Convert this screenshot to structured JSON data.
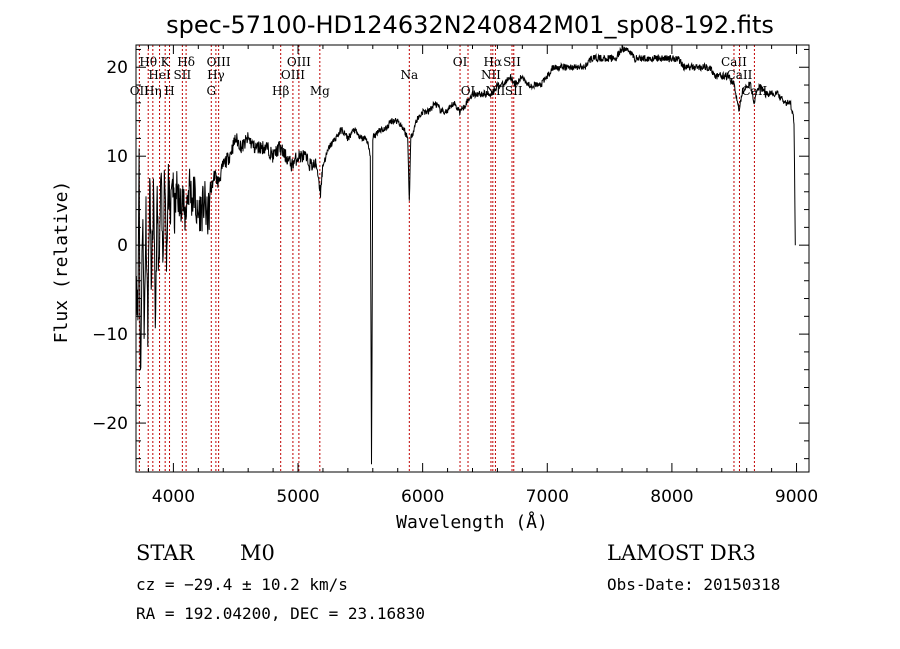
{
  "chart_data": {
    "type": "line",
    "title": "spec-57100-HD124632N240842M01_sp08-192.fits",
    "xlabel": "Wavelength (Å)",
    "ylabel": "Flux (relative)",
    "xlim": [
      3700,
      9100
    ],
    "ylim": [
      -25.5,
      22.5
    ],
    "xticks": [
      4000,
      5000,
      6000,
      7000,
      8000,
      9000
    ],
    "yticks": [
      -20,
      -10,
      0,
      10,
      20
    ],
    "tick_labels": {
      "x": [
        "4000",
        "5000",
        "6000",
        "7000",
        "8000",
        "9000"
      ],
      "y": [
        "−20",
        "−10",
        "0",
        "10",
        "20"
      ]
    },
    "spectrum_anchors": [
      [
        3700,
        -2
      ],
      [
        3715,
        -8
      ],
      [
        3725,
        11
      ],
      [
        3735,
        -15
      ],
      [
        3745,
        -6
      ],
      [
        3755,
        5
      ],
      [
        3765,
        -11
      ],
      [
        3780,
        4
      ],
      [
        3795,
        -9
      ],
      [
        3810,
        7
      ],
      [
        3825,
        -5
      ],
      [
        3840,
        6
      ],
      [
        3855,
        -9
      ],
      [
        3870,
        5
      ],
      [
        3885,
        -4
      ],
      [
        3900,
        8
      ],
      [
        3915,
        -2
      ],
      [
        3930,
        9
      ],
      [
        3945,
        -1
      ],
      [
        3960,
        7
      ],
      [
        3975,
        2
      ],
      [
        3990,
        8
      ],
      [
        4010,
        3
      ],
      [
        4030,
        7
      ],
      [
        4050,
        4
      ],
      [
        4070,
        6
      ],
      [
        4090,
        3
      ],
      [
        4110,
        5
      ],
      [
        4130,
        7
      ],
      [
        4150,
        5
      ],
      [
        4170,
        6
      ],
      [
        4190,
        3
      ],
      [
        4210,
        4
      ],
      [
        4230,
        4
      ],
      [
        4250,
        5
      ],
      [
        4270,
        3
      ],
      [
        4290,
        4
      ],
      [
        4300,
        6
      ],
      [
        4330,
        8
      ],
      [
        4360,
        7
      ],
      [
        4400,
        9
      ],
      [
        4450,
        10
      ],
      [
        4500,
        12
      ],
      [
        4550,
        11
      ],
      [
        4600,
        12
      ],
      [
        4650,
        11
      ],
      [
        4700,
        11
      ],
      [
        4750,
        11
      ],
      [
        4800,
        10
      ],
      [
        4850,
        11
      ],
      [
        4900,
        10
      ],
      [
        4950,
        9
      ],
      [
        5000,
        10
      ],
      [
        5050,
        10
      ],
      [
        5100,
        9
      ],
      [
        5150,
        9
      ],
      [
        5180,
        6
      ],
      [
        5200,
        9
      ],
      [
        5250,
        11
      ],
      [
        5300,
        12
      ],
      [
        5350,
        13
      ],
      [
        5400,
        12
      ],
      [
        5450,
        13
      ],
      [
        5500,
        12
      ],
      [
        5550,
        12
      ],
      [
        5580,
        10
      ],
      [
        5590,
        -25
      ],
      [
        5600,
        12
      ],
      [
        5650,
        13
      ],
      [
        5700,
        13
      ],
      [
        5750,
        14
      ],
      [
        5800,
        14
      ],
      [
        5850,
        13
      ],
      [
        5880,
        12
      ],
      [
        5893,
        5
      ],
      [
        5905,
        12
      ],
      [
        5950,
        14
      ],
      [
        6000,
        15
      ],
      [
        6050,
        15
      ],
      [
        6100,
        16
      ],
      [
        6150,
        15
      ],
      [
        6200,
        15
      ],
      [
        6250,
        16
      ],
      [
        6300,
        15
      ],
      [
        6350,
        16
      ],
      [
        6400,
        17
      ],
      [
        6450,
        17
      ],
      [
        6500,
        17
      ],
      [
        6550,
        17
      ],
      [
        6600,
        18
      ],
      [
        6650,
        18
      ],
      [
        6700,
        19
      ],
      [
        6750,
        18
      ],
      [
        6800,
        19
      ],
      [
        6850,
        18
      ],
      [
        6900,
        18
      ],
      [
        6950,
        18
      ],
      [
        7000,
        19
      ],
      [
        7050,
        20
      ],
      [
        7100,
        20
      ],
      [
        7150,
        20
      ],
      [
        7200,
        20
      ],
      [
        7250,
        20
      ],
      [
        7300,
        20
      ],
      [
        7350,
        21
      ],
      [
        7400,
        21
      ],
      [
        7450,
        21
      ],
      [
        7500,
        21
      ],
      [
        7550,
        21
      ],
      [
        7600,
        22
      ],
      [
        7650,
        22
      ],
      [
        7700,
        21
      ],
      [
        7750,
        21
      ],
      [
        7800,
        21
      ],
      [
        7850,
        21
      ],
      [
        7900,
        21
      ],
      [
        7950,
        21
      ],
      [
        8000,
        21
      ],
      [
        8050,
        21
      ],
      [
        8100,
        20
      ],
      [
        8150,
        20
      ],
      [
        8200,
        20
      ],
      [
        8250,
        20
      ],
      [
        8300,
        20
      ],
      [
        8350,
        19
      ],
      [
        8400,
        19
      ],
      [
        8450,
        19
      ],
      [
        8500,
        18
      ],
      [
        8540,
        15
      ],
      [
        8560,
        17
      ],
      [
        8600,
        18
      ],
      [
        8630,
        18
      ],
      [
        8662,
        16
      ],
      [
        8700,
        18
      ],
      [
        8750,
        17
      ],
      [
        8800,
        17
      ],
      [
        8850,
        17
      ],
      [
        8900,
        16
      ],
      [
        8950,
        16
      ],
      [
        8980,
        14
      ],
      [
        8990,
        0
      ]
    ],
    "line_markers": [
      {
        "wl": 3727,
        "label": "OII",
        "row": 3
      },
      {
        "wl": 3798,
        "label": "Hθ",
        "row": 1
      },
      {
        "wl": 3835,
        "label": "Hη",
        "row": 3
      },
      {
        "wl": 3889,
        "label": "HeI",
        "row": 2
      },
      {
        "wl": 3934,
        "label": "K",
        "row": 1
      },
      {
        "wl": 3969,
        "label": "H",
        "row": 3
      },
      {
        "wl": 4072,
        "label": "SII",
        "row": 2
      },
      {
        "wl": 4102,
        "label": "Hδ",
        "row": 1
      },
      {
        "wl": 4304,
        "label": "G",
        "row": 3
      },
      {
        "wl": 4341,
        "label": "Hγ",
        "row": 2
      },
      {
        "wl": 4363,
        "label": "OIII",
        "row": 1
      },
      {
        "wl": 4861,
        "label": "Hβ",
        "row": 3
      },
      {
        "wl": 4959,
        "label": "OIII",
        "row": 2
      },
      {
        "wl": 5007,
        "label": "OIII",
        "row": 1
      },
      {
        "wl": 5175,
        "label": "Mg",
        "row": 3
      },
      {
        "wl": 5893,
        "label": "Na",
        "row": 2
      },
      {
        "wl": 6300,
        "label": "OI",
        "row": 1
      },
      {
        "wl": 6364,
        "label": "OI",
        "row": 3
      },
      {
        "wl": 6548,
        "label": "NII",
        "row": 2
      },
      {
        "wl": 6563,
        "label": "Hα",
        "row": 1
      },
      {
        "wl": 6584,
        "label": "NII",
        "row": 3
      },
      {
        "wl": 6717,
        "label": "SII",
        "row": 1
      },
      {
        "wl": 6731,
        "label": "SII",
        "row": 3
      },
      {
        "wl": 8498,
        "label": "CaII",
        "row": 1
      },
      {
        "wl": 8542,
        "label": "CaII",
        "row": 2
      },
      {
        "wl": 8662,
        "label": "CaII",
        "row": 3
      }
    ]
  },
  "info": {
    "object_class": "STAR",
    "subclass": "M0",
    "survey": "LAMOST DR3",
    "cz": "cz = −29.4 ± 10.2 km/s",
    "obs_date": "Obs-Date: 20150318",
    "coords": "RA = 192.04200, DEC =  23.16830"
  },
  "colors": {
    "spectrum": "#000000",
    "marker_line": "#c00000",
    "axis": "#000000"
  }
}
